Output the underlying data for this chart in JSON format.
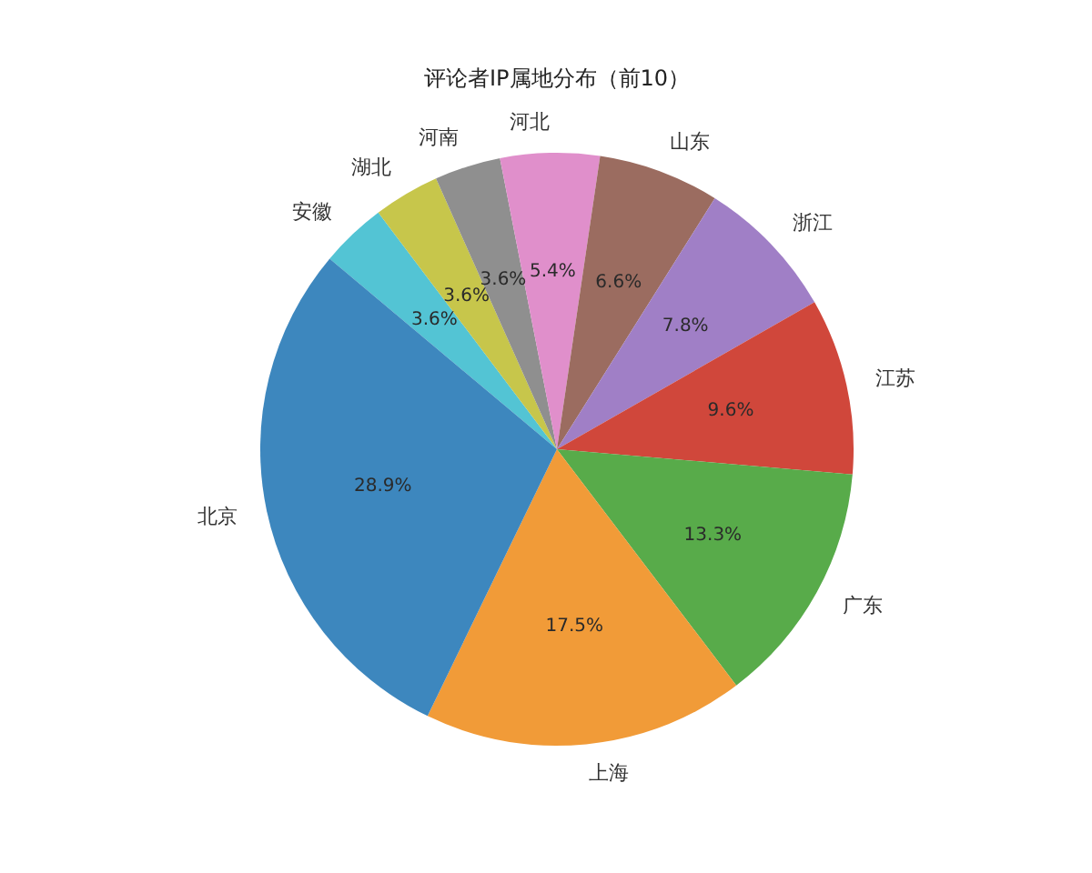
{
  "chart_data": {
    "type": "pie",
    "title": "评论者IP属地分布（前10）",
    "categories": [
      "北京",
      "上海",
      "广东",
      "江苏",
      "浙江",
      "山东",
      "河北",
      "河南",
      "湖北",
      "安徽"
    ],
    "values": [
      28.9,
      17.5,
      13.3,
      9.6,
      7.8,
      6.6,
      5.4,
      3.6,
      3.6,
      3.6
    ],
    "colors": [
      "#3d87be",
      "#f19b38",
      "#58ab4a",
      "#d0473b",
      "#a07fc6",
      "#9b6c60",
      "#e08fcb",
      "#8f8f8f",
      "#c7c64b",
      "#53c4d4"
    ],
    "value_labels": [
      "28.9%",
      "17.5%",
      "13.3%",
      "9.6%",
      "7.8%",
      "6.6%",
      "5.4%",
      "3.6%",
      "3.6%",
      "3.6%"
    ]
  }
}
